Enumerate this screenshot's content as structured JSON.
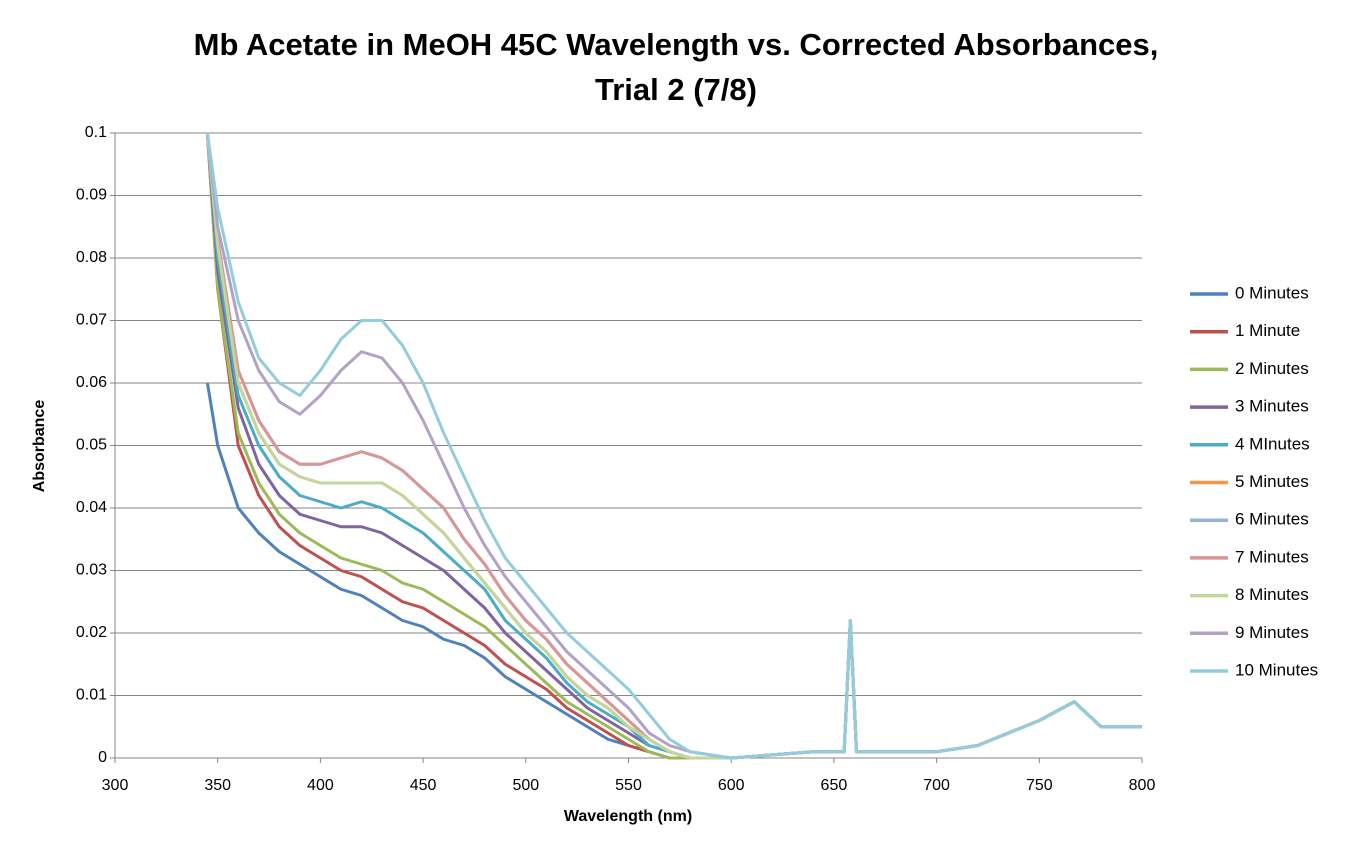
{
  "chart_data": {
    "type": "line",
    "title": [
      "Mb Acetate in MeOH 45C Wavelength vs. Corrected Absorbances,",
      "Trial 2 (7/8)"
    ],
    "x_label": "Wavelength (nm)",
    "y_label": "Absorbance",
    "x": [
      345,
      350,
      360,
      370,
      380,
      390,
      400,
      410,
      420,
      430,
      440,
      450,
      460,
      470,
      480,
      490,
      500,
      510,
      520,
      530,
      540,
      550,
      560,
      570,
      580,
      600,
      640,
      655,
      658,
      661,
      700,
      720,
      750,
      767,
      780,
      800
    ],
    "series": [
      {
        "name": "0 Minutes",
        "color": "#4F81BD",
        "values": [
          0.06,
          0.05,
          0.04,
          0.036,
          0.033,
          0.031,
          0.029,
          0.027,
          0.026,
          0.024,
          0.022,
          0.021,
          0.019,
          0.018,
          0.016,
          0.013,
          0.011,
          0.009,
          0.007,
          0.005,
          0.003,
          0.002,
          0.001,
          0,
          0,
          0,
          0.001,
          0.001,
          0.022,
          0.001,
          0.001,
          0.002,
          0.006,
          0.009,
          0.005,
          0.005
        ]
      },
      {
        "name": "1 Minute",
        "color": "#C0504D",
        "values": [
          0.1,
          0.075,
          0.05,
          0.042,
          0.037,
          0.034,
          0.032,
          0.03,
          0.029,
          0.027,
          0.025,
          0.024,
          0.022,
          0.02,
          0.018,
          0.015,
          0.013,
          0.011,
          0.008,
          0.006,
          0.004,
          0.002,
          0.001,
          0,
          0,
          0,
          0.001,
          0.001,
          0.022,
          0.001,
          0.001,
          0.002,
          0.006,
          0.009,
          0.005,
          0.005
        ]
      },
      {
        "name": "2 Minutes",
        "color": "#9BBB59",
        "values": [
          0.1,
          0.075,
          0.052,
          0.044,
          0.039,
          0.036,
          0.034,
          0.032,
          0.031,
          0.03,
          0.028,
          0.027,
          0.025,
          0.023,
          0.021,
          0.018,
          0.015,
          0.012,
          0.009,
          0.007,
          0.005,
          0.003,
          0.001,
          0,
          0,
          0,
          0.001,
          0.001,
          0.022,
          0.001,
          0.001,
          0.002,
          0.006,
          0.009,
          0.005,
          0.005
        ]
      },
      {
        "name": "3 Minutes",
        "color": "#8064A2",
        "values": [
          0.1,
          0.078,
          0.056,
          0.047,
          0.042,
          0.039,
          0.038,
          0.037,
          0.037,
          0.036,
          0.034,
          0.032,
          0.03,
          0.027,
          0.024,
          0.02,
          0.017,
          0.014,
          0.011,
          0.008,
          0.006,
          0.004,
          0.002,
          0.001,
          0,
          0,
          0.001,
          0.001,
          0.022,
          0.001,
          0.001,
          0.002,
          0.006,
          0.009,
          0.005,
          0.005
        ]
      },
      {
        "name": "4 MInutes",
        "color": "#4BACC6",
        "values": [
          0.1,
          0.08,
          0.058,
          0.05,
          0.045,
          0.042,
          0.041,
          0.04,
          0.041,
          0.04,
          0.038,
          0.036,
          0.033,
          0.03,
          0.027,
          0.022,
          0.019,
          0.016,
          0.012,
          0.009,
          0.007,
          0.005,
          0.002,
          0.001,
          0,
          0,
          0.001,
          0.001,
          0.022,
          0.001,
          0.001,
          0.002,
          0.006,
          0.009,
          0.005,
          0.005
        ]
      },
      {
        "name": "5 Minutes",
        "color": "#F79646",
        "values": [
          0.1,
          0.082,
          0.06,
          0.052,
          0.047,
          0.045,
          0.044,
          0.044,
          0.044,
          0.044,
          0.042,
          0.039,
          0.036,
          0.032,
          0.028,
          0.024,
          0.02,
          0.017,
          0.013,
          0.01,
          0.008,
          0.005,
          0.003,
          0.001,
          0,
          0,
          0.001,
          0.001,
          0.022,
          0.001,
          0.001,
          0.002,
          0.006,
          0.009,
          0.005,
          0.005
        ]
      },
      {
        "name": "6 Minutes",
        "color": "#95B3D7",
        "values": [
          0.1,
          0.083,
          0.062,
          0.054,
          0.049,
          0.047,
          0.047,
          0.048,
          0.049,
          0.048,
          0.046,
          0.043,
          0.04,
          0.035,
          0.031,
          0.026,
          0.022,
          0.019,
          0.015,
          0.012,
          0.009,
          0.006,
          0.003,
          0.001,
          0,
          0,
          0.001,
          0.001,
          0.022,
          0.001,
          0.001,
          0.002,
          0.006,
          0.009,
          0.005,
          0.005
        ]
      },
      {
        "name": "7 Minutes",
        "color": "#D99694",
        "values": [
          0.1,
          0.083,
          0.062,
          0.054,
          0.049,
          0.047,
          0.047,
          0.048,
          0.049,
          0.048,
          0.046,
          0.043,
          0.04,
          0.035,
          0.031,
          0.026,
          0.022,
          0.019,
          0.015,
          0.012,
          0.009,
          0.006,
          0.003,
          0.001,
          0,
          0,
          0.001,
          0.001,
          0.022,
          0.001,
          0.001,
          0.002,
          0.006,
          0.009,
          0.005,
          0.005
        ]
      },
      {
        "name": "8 Minutes",
        "color": "#C3D69B",
        "values": [
          0.1,
          0.082,
          0.06,
          0.052,
          0.047,
          0.045,
          0.044,
          0.044,
          0.044,
          0.044,
          0.042,
          0.039,
          0.036,
          0.032,
          0.028,
          0.024,
          0.02,
          0.017,
          0.013,
          0.01,
          0.008,
          0.005,
          0.003,
          0.001,
          0,
          0,
          0.001,
          0.001,
          0.022,
          0.001,
          0.001,
          0.002,
          0.006,
          0.009,
          0.005,
          0.005
        ]
      },
      {
        "name": "9 Minutes",
        "color": "#B3A2C7",
        "values": [
          0.1,
          0.085,
          0.07,
          0.062,
          0.057,
          0.055,
          0.058,
          0.062,
          0.065,
          0.064,
          0.06,
          0.054,
          0.047,
          0.04,
          0.034,
          0.029,
          0.025,
          0.021,
          0.017,
          0.014,
          0.011,
          0.008,
          0.004,
          0.002,
          0.001,
          0,
          0.001,
          0.001,
          0.022,
          0.001,
          0.001,
          0.002,
          0.006,
          0.009,
          0.005,
          0.005
        ]
      },
      {
        "name": "10 Minutes",
        "color": "#93CDDD",
        "values": [
          0.1,
          0.088,
          0.073,
          0.064,
          0.06,
          0.058,
          0.062,
          0.067,
          0.07,
          0.07,
          0.066,
          0.06,
          0.052,
          0.045,
          0.038,
          0.032,
          0.028,
          0.024,
          0.02,
          0.017,
          0.014,
          0.011,
          0.007,
          0.003,
          0.001,
          0,
          0.001,
          0.001,
          0.022,
          0.001,
          0.001,
          0.002,
          0.006,
          0.009,
          0.005,
          0.005
        ]
      }
    ],
    "xlim": [
      300,
      800
    ],
    "xticks": [
      300,
      350,
      400,
      450,
      500,
      550,
      600,
      650,
      700,
      750,
      800
    ],
    "ylim": [
      0,
      0.1
    ],
    "yticks": [
      0,
      0.01,
      0.02,
      0.03,
      0.04,
      0.05,
      0.06,
      0.07,
      0.08,
      0.09,
      0.1
    ],
    "grid": true,
    "legend": "right"
  }
}
